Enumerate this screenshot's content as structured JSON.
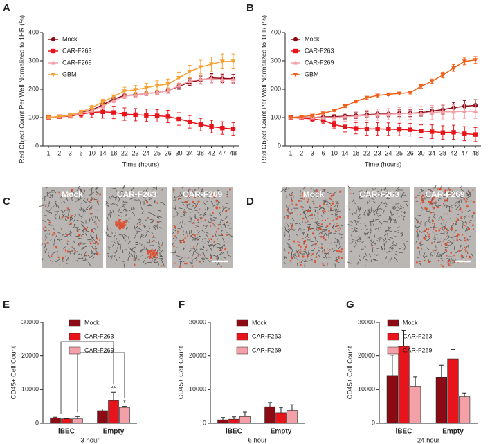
{
  "chart_data": [
    {
      "type": "line",
      "panel": "A",
      "y_label": "Red Object Count Per Well Normalized to 1HR (%)",
      "x_label": "Time (hours)",
      "categories": [
        "1",
        "2",
        "3",
        "6",
        "10",
        "14",
        "18",
        "22",
        "23",
        "24",
        "25",
        "26",
        "30",
        "34",
        "38",
        "42",
        "47",
        "48"
      ],
      "ylim": [
        0,
        400
      ],
      "yticks": [
        0,
        100,
        200,
        300,
        400
      ],
      "legend": "upper-left",
      "series": [
        {
          "name": "Mock",
          "color": "#8b0a14",
          "marker": "circle",
          "values": [
            100,
            103,
            107,
            117,
            127,
            145,
            165,
            178,
            180,
            185,
            188,
            195,
            210,
            225,
            232,
            240,
            238,
            237
          ],
          "errors": [
            3,
            3,
            4,
            5,
            6,
            8,
            8,
            8,
            8,
            8,
            8,
            9,
            10,
            12,
            14,
            15,
            15,
            15
          ]
        },
        {
          "name": "CAR-F263",
          "color": "#e8141c",
          "marker": "square",
          "values": [
            100,
            103,
            105,
            112,
            118,
            120,
            118,
            112,
            110,
            108,
            106,
            104,
            95,
            85,
            75,
            68,
            63,
            60
          ],
          "errors": [
            3,
            4,
            5,
            10,
            18,
            22,
            22,
            22,
            22,
            22,
            22,
            22,
            22,
            22,
            22,
            22,
            22,
            22
          ]
        },
        {
          "name": "CAR-F269",
          "color": "#f4a0a8",
          "marker": "triangle-up",
          "values": [
            100,
            103,
            107,
            115,
            125,
            140,
            160,
            175,
            180,
            185,
            188,
            195,
            212,
            228,
            235,
            237,
            233,
            235
          ],
          "errors": [
            3,
            3,
            4,
            5,
            6,
            8,
            8,
            8,
            8,
            8,
            8,
            9,
            10,
            12,
            14,
            15,
            15,
            15
          ]
        },
        {
          "name": "GBM",
          "color": "#f5a030",
          "marker": "triangle-down",
          "values": [
            100,
            104,
            108,
            120,
            135,
            155,
            175,
            193,
            198,
            205,
            213,
            218,
            240,
            262,
            278,
            288,
            298,
            298
          ],
          "errors": [
            3,
            4,
            5,
            6,
            8,
            10,
            12,
            14,
            15,
            16,
            17,
            18,
            20,
            22,
            24,
            25,
            26,
            26
          ]
        }
      ]
    },
    {
      "type": "line",
      "panel": "B",
      "y_label": "Red Object Count Per Well Normalized to 1HR (%)",
      "x_label": "Time (hours)",
      "categories": [
        "1",
        "2",
        "3",
        "6",
        "10",
        "14",
        "18",
        "22",
        "23",
        "24",
        "25",
        "26",
        "30",
        "34",
        "38",
        "42",
        "47",
        "48"
      ],
      "ylim": [
        0,
        400
      ],
      "yticks": [
        0,
        100,
        200,
        300,
        400
      ],
      "legend": "upper-left",
      "series": [
        {
          "name": "Mock",
          "color": "#8b0a14",
          "marker": "circle",
          "values": [
            100,
            100,
            100,
            102,
            103,
            105,
            107,
            110,
            112,
            113,
            115,
            115,
            117,
            123,
            128,
            135,
            140,
            143
          ],
          "errors": [
            3,
            4,
            5,
            6,
            8,
            10,
            10,
            10,
            10,
            10,
            12,
            12,
            12,
            14,
            16,
            18,
            20,
            20
          ]
        },
        {
          "name": "CAR-F263",
          "color": "#e8141c",
          "marker": "square",
          "values": [
            100,
            98,
            95,
            90,
            75,
            67,
            62,
            60,
            60,
            59,
            58,
            57,
            52,
            50,
            47,
            48,
            43,
            40
          ],
          "errors": [
            3,
            5,
            8,
            10,
            12,
            18,
            20,
            22,
            22,
            22,
            22,
            22,
            22,
            24,
            24,
            25,
            25,
            25
          ]
        },
        {
          "name": "CAR-F269",
          "color": "#f4a0a8",
          "marker": "triangle-up",
          "values": [
            100,
            100,
            100,
            100,
            100,
            103,
            105,
            108,
            110,
            112,
            113,
            115,
            115,
            118,
            120,
            120,
            122,
            122
          ],
          "errors": [
            3,
            4,
            5,
            8,
            10,
            12,
            15,
            18,
            20,
            20,
            22,
            22,
            24,
            25,
            25,
            25,
            25,
            25
          ]
        },
        {
          "name": "GBM",
          "color": "#f06018",
          "marker": "triangle-down",
          "values": [
            100,
            103,
            107,
            115,
            125,
            140,
            157,
            170,
            178,
            182,
            185,
            188,
            210,
            228,
            250,
            275,
            298,
            303
          ],
          "errors": [
            2,
            2,
            3,
            3,
            4,
            5,
            5,
            5,
            5,
            5,
            5,
            5,
            6,
            8,
            10,
            12,
            12,
            12
          ]
        }
      ]
    },
    {
      "type": "image",
      "panel": "C",
      "labels": [
        "Mock",
        "CAR-F263",
        "CAR-F269"
      ]
    },
    {
      "type": "image",
      "panel": "D",
      "labels": [
        "Mock",
        "CAR-F263",
        "CAR-F269"
      ]
    },
    {
      "type": "bar",
      "panel": "E",
      "y_label": "CD45+ Cell Count",
      "x_label": "3 hour",
      "categories": [
        "iBEC",
        "Empty"
      ],
      "ylim": [
        0,
        30000
      ],
      "yticks": [
        0,
        10000,
        20000,
        30000
      ],
      "legend": "upper-left",
      "series": [
        {
          "name": "Mock",
          "color": "#8b0a14",
          "values": [
            1600,
            3700
          ],
          "errors": [
            200,
            500
          ]
        },
        {
          "name": "CAR-F263",
          "color": "#e8141c",
          "values": [
            1300,
            6700
          ],
          "errors": [
            150,
            2500
          ],
          "annotations": [
            null,
            "**"
          ]
        },
        {
          "name": "CAR-F269",
          "color": "#f4a0a8",
          "values": [
            1300,
            4700
          ],
          "errors": [
            700,
            300
          ],
          "annotations": [
            null,
            "*"
          ]
        }
      ]
    },
    {
      "type": "bar",
      "panel": "F",
      "y_label": "CD45+ Cell Count",
      "x_label": "6 hour",
      "categories": [
        "iBEC",
        "Empty"
      ],
      "ylim": [
        0,
        30000
      ],
      "yticks": [
        0,
        10000,
        20000,
        30000
      ],
      "legend": "upper-left",
      "series": [
        {
          "name": "Mock",
          "color": "#8b0a14",
          "values": [
            1000,
            4900
          ],
          "errors": [
            700,
            1300
          ]
        },
        {
          "name": "CAR-F263",
          "color": "#e8141c",
          "values": [
            1200,
            3100
          ],
          "errors": [
            700,
            1600
          ]
        },
        {
          "name": "CAR-F269",
          "color": "#f4a0a8",
          "values": [
            2000,
            3800
          ],
          "errors": [
            1300,
            1700
          ]
        }
      ]
    },
    {
      "type": "bar",
      "panel": "G",
      "y_label": "CD45+ Cell Count",
      "x_label": "24 hour",
      "categories": [
        "iBEC",
        "Empty"
      ],
      "ylim": [
        0,
        30000
      ],
      "yticks": [
        0,
        10000,
        20000,
        30000
      ],
      "legend": "upper-left",
      "series": [
        {
          "name": "Mock",
          "color": "#8b0a14",
          "values": [
            14200,
            13700
          ],
          "errors": [
            6000,
            3500
          ]
        },
        {
          "name": "CAR-F263",
          "color": "#e8141c",
          "values": [
            22800,
            19100
          ],
          "errors": [
            4800,
            2800
          ]
        },
        {
          "name": "CAR-F269",
          "color": "#f4a0a8",
          "values": [
            11000,
            7900
          ],
          "errors": [
            2800,
            1100
          ]
        }
      ]
    }
  ]
}
